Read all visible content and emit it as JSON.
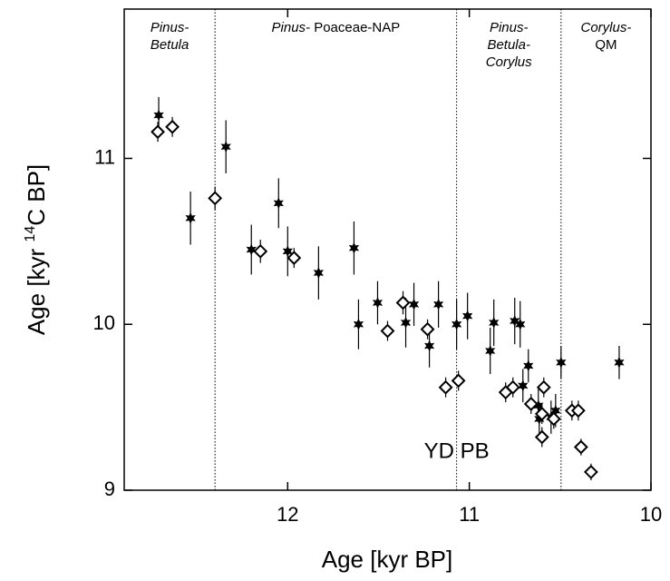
{
  "chart_data": {
    "type": "scatter",
    "x_label": "Age [kyr BP]",
    "y_label": [
      {
        "text": "Age  [kyr "
      },
      {
        "text": "14",
        "sup": true
      },
      {
        "text": "C BP]"
      }
    ],
    "xlim": [
      12.9,
      10
    ],
    "ylim": [
      9,
      11.9
    ],
    "xticks": [
      12,
      11,
      10
    ],
    "yticks": [
      9,
      10,
      11
    ],
    "zone_lines": [
      12.4,
      11.07,
      10.495
    ],
    "zones": [
      {
        "lines": [
          [
            {
              "text": "Pinus-",
              "italic": true
            }
          ],
          [
            {
              "text": "Betula",
              "italic": true
            }
          ]
        ]
      },
      {
        "lines": [
          [
            {
              "text": "Pinus-",
              "italic": true
            },
            {
              "text": " Poaceae-NAP",
              "italic": false
            }
          ]
        ]
      },
      {
        "lines": [
          [
            {
              "text": "Pinus-",
              "italic": true
            }
          ],
          [
            {
              "text": "Betula-",
              "italic": true
            }
          ],
          [
            {
              "text": "Corylus",
              "italic": true
            }
          ]
        ]
      },
      {
        "lines": [
          [
            {
              "text": "Corylus-",
              "italic": true
            }
          ],
          [
            {
              "text": "QM",
              "italic": false
            }
          ]
        ]
      }
    ],
    "annotation": {
      "text": "YD PB",
      "x": 11.07,
      "y": 9.23
    },
    "series": [
      {
        "marker": "star",
        "color": "#000000",
        "x": [
          12.71,
          12.535,
          12.34,
          12.2,
          12.05,
          12.0,
          11.83,
          11.635,
          11.61,
          11.505,
          11.35,
          11.305,
          11.22,
          11.17,
          11.07,
          11.01,
          10.885,
          10.865,
          10.75,
          10.72,
          10.705,
          10.675,
          10.62,
          10.615,
          10.55,
          10.525,
          10.495,
          10.175
        ],
        "values": [
          11.26,
          10.64,
          11.07,
          10.45,
          10.73,
          10.44,
          10.31,
          10.46,
          10.0,
          10.13,
          10.01,
          10.12,
          9.87,
          10.12,
          10.0,
          10.05,
          9.84,
          10.01,
          10.02,
          10.0,
          9.63,
          9.75,
          9.51,
          9.43,
          9.44,
          9.48,
          9.77,
          9.77
        ],
        "errors": [
          0.11,
          0.16,
          0.16,
          0.15,
          0.15,
          0.15,
          0.16,
          0.16,
          0.15,
          0.13,
          0.15,
          0.13,
          0.13,
          0.14,
          0.15,
          0.14,
          0.14,
          0.14,
          0.14,
          0.14,
          0.1,
          0.1,
          0.1,
          0.1,
          0.1,
          0.1,
          0.1,
          0.1
        ]
      },
      {
        "marker": "diamond",
        "color": "#000000",
        "x": [
          12.715,
          12.635,
          12.4,
          12.15,
          11.965,
          11.45,
          11.365,
          11.23,
          11.13,
          11.06,
          10.8,
          10.76,
          10.66,
          10.6,
          10.59,
          10.6,
          10.535,
          10.435,
          10.4,
          10.385,
          10.33
        ],
        "values": [
          11.16,
          11.19,
          10.76,
          10.44,
          10.4,
          9.96,
          10.13,
          9.97,
          9.62,
          9.66,
          9.59,
          9.62,
          9.52,
          9.46,
          9.62,
          9.32,
          9.43,
          9.48,
          9.48,
          9.26,
          9.11
        ],
        "errors": [
          0.06,
          0.06,
          0.07,
          0.07,
          0.06,
          0.06,
          0.07,
          0.06,
          0.06,
          0.06,
          0.06,
          0.06,
          0.06,
          0.06,
          0.06,
          0.06,
          0.06,
          0.06,
          0.06,
          0.05,
          0.05
        ]
      }
    ]
  }
}
